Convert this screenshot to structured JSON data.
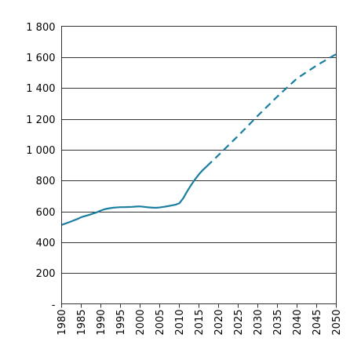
{
  "chart_data": {
    "type": "line",
    "title": "",
    "xlabel": "",
    "ylabel": "",
    "xlim": [
      1980,
      2050
    ],
    "ylim": [
      0,
      1800
    ],
    "grid": true,
    "legend": "none",
    "x_ticks": [
      "1980",
      "1985",
      "1990",
      "1995",
      "2000",
      "2005",
      "2010",
      "2015",
      "2020",
      "2025",
      "2030",
      "2035",
      "2040",
      "2045",
      "2050"
    ],
    "y_ticks": [
      "-",
      "200",
      "400",
      "600",
      "800",
      "1 000",
      "1 200",
      "1 400",
      "1 600",
      "1 800"
    ],
    "series": [
      {
        "style": "solid",
        "color": "#1a7ea0",
        "x": [
          1980,
          1982,
          1984,
          1985,
          1987,
          1989,
          1990,
          1991,
          1992,
          1993,
          1994,
          1995,
          1996,
          1997,
          1998,
          1999,
          2000,
          2001,
          2002,
          2003,
          2004,
          2005,
          2006,
          2007,
          2008,
          2009,
          2010,
          2011,
          2012,
          2013,
          2014,
          2015,
          2016,
          2017
        ],
        "y": [
          512,
          530,
          550,
          562,
          577,
          594,
          605,
          614,
          619,
          623,
          625,
          627,
          627,
          628,
          629,
          631,
          632,
          629,
          626,
          624,
          623,
          625,
          629,
          633,
          638,
          643,
          652,
          685,
          730,
          770,
          807,
          840,
          868,
          892
        ]
      },
      {
        "style": "dashed",
        "color": "#1a7ea0",
        "x": [
          2017,
          2020,
          2025,
          2030,
          2035,
          2040,
          2045,
          2050
        ],
        "y": [
          892,
          965,
          1090,
          1220,
          1345,
          1462,
          1546,
          1620
        ]
      }
    ]
  }
}
